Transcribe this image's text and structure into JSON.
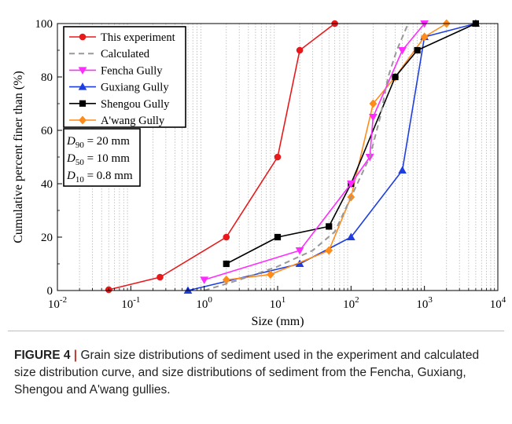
{
  "chart_data": {
    "type": "line",
    "x_scale": "log",
    "xlim": [
      0.01,
      10000
    ],
    "ylim": [
      0,
      100
    ],
    "xlabel": "Size (mm)",
    "ylabel": "Cumulative percent finer than (%)",
    "x_ticks": [
      {
        "value": 0.01,
        "base": "10",
        "exp": "-2"
      },
      {
        "value": 0.1,
        "base": "10",
        "exp": "-1"
      },
      {
        "value": 1,
        "base": "10",
        "exp": "0"
      },
      {
        "value": 10,
        "base": "10",
        "exp": "1"
      },
      {
        "value": 100,
        "base": "10",
        "exp": "2"
      },
      {
        "value": 1000,
        "base": "10",
        "exp": "3"
      },
      {
        "value": 10000,
        "base": "10",
        "exp": "4"
      }
    ],
    "y_ticks": [
      "0",
      "20",
      "40",
      "60",
      "80",
      "100"
    ],
    "grid": "vertical dotted minor",
    "legend_position": "top-left",
    "series": [
      {
        "name": "This experiment",
        "color": "#e8191b",
        "marker": "circle",
        "dashed": false,
        "x": [
          0.05,
          0.25,
          2,
          10,
          20,
          60
        ],
        "y": [
          0.3,
          5,
          20,
          50,
          90,
          100
        ]
      },
      {
        "name": "Calculated",
        "color": "#999999",
        "marker": "none",
        "dashed": true,
        "x": [
          1,
          3,
          10,
          30,
          60,
          100,
          180,
          250,
          320,
          420,
          600
        ],
        "y": [
          0,
          4,
          9,
          15,
          22,
          35,
          50,
          65,
          80,
          90,
          100
        ]
      },
      {
        "name": "Fencha Gully",
        "color": "#ff2bff",
        "marker": "triangle-down",
        "dashed": false,
        "x": [
          1,
          20,
          100,
          180,
          200,
          500,
          1000
        ],
        "y": [
          4,
          15,
          40,
          50,
          65,
          90,
          100
        ]
      },
      {
        "name": "Guxiang Gully",
        "color": "#1f3ee0",
        "marker": "triangle-up",
        "dashed": false,
        "x": [
          0.6,
          20,
          100,
          500,
          1000,
          5000
        ],
        "y": [
          0,
          10,
          20,
          45,
          95,
          100
        ]
      },
      {
        "name": "Shengou Gully",
        "color": "#000000",
        "marker": "square",
        "dashed": false,
        "x": [
          2,
          10,
          50,
          100,
          400,
          800,
          5000
        ],
        "y": [
          10,
          20,
          24,
          40,
          80,
          90,
          100
        ]
      },
      {
        "name": "A'wang Gully",
        "color": "#ff8c1a",
        "marker": "diamond",
        "dashed": false,
        "x": [
          2,
          8,
          50,
          100,
          200,
          400,
          1000,
          2000
        ],
        "y": [
          4,
          6,
          15,
          35,
          70,
          80,
          95,
          100
        ]
      }
    ],
    "annotations": [
      {
        "var": "D",
        "sub": "90",
        "text": " = 20 mm"
      },
      {
        "var": "D",
        "sub": "50",
        "text": " = 10 mm"
      },
      {
        "var": "D",
        "sub": "10",
        "text": " = 0.8 mm"
      }
    ]
  },
  "caption": {
    "lead": "FIGURE 4",
    "separator": "|",
    "text": " Grain size distributions of sediment used in the experiment and calculated size distribution curve, and size distributions of sediment from the Fencha, Guxiang, Shengou and A'wang gullies."
  }
}
